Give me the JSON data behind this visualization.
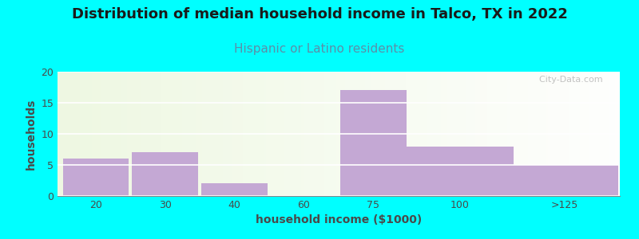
{
  "title": "Distribution of median household income in Talco, TX in 2022",
  "subtitle": "Hispanic or Latino residents",
  "xlabel": "household income ($1000)",
  "ylabel": "households",
  "background_outer": "#00FFFF",
  "bar_color": "#C4A8D4",
  "categories": [
    "20",
    "30",
    "40",
    "60",
    "75",
    "100",
    ">125"
  ],
  "values": [
    6,
    7,
    2,
    0,
    17,
    8,
    5
  ],
  "ylim": [
    0,
    20
  ],
  "yticks": [
    0,
    5,
    10,
    15,
    20
  ],
  "title_fontsize": 13,
  "subtitle_fontsize": 11,
  "label_fontsize": 10,
  "tick_fontsize": 9,
  "title_color": "#1a1a1a",
  "subtitle_color": "#5B8FA8",
  "axis_label_color": "#4a4a4a",
  "tick_color": "#4a4a4a",
  "watermark": "  City-Data.com"
}
